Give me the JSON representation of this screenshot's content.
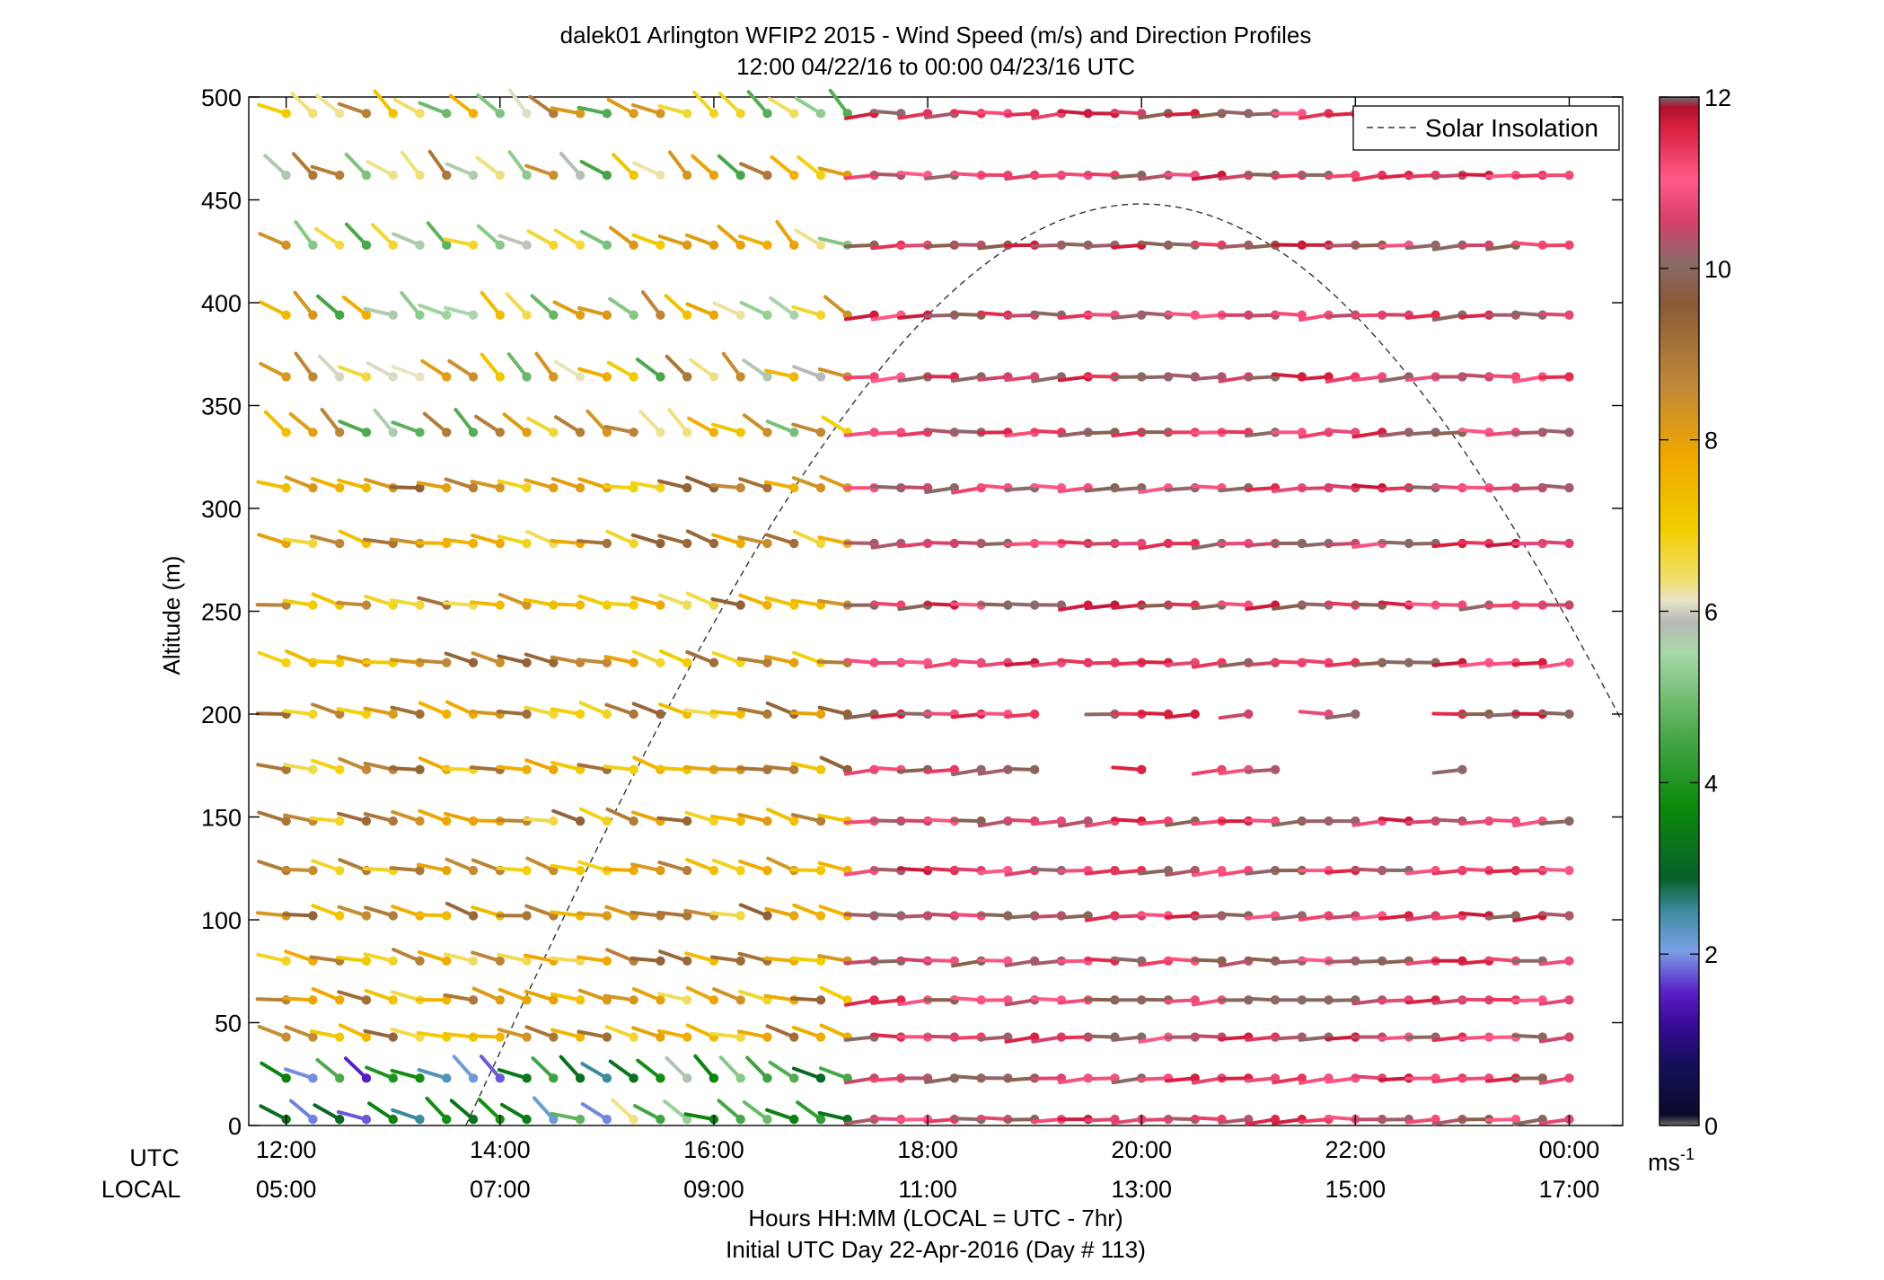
{
  "chart_data": {
    "type": "wind-barb-profile",
    "title": "dalek01 Arlington WFIP2 2015 - Wind Speed (m/s) and Direction Profiles",
    "subtitle": "12:00 04/22/16 to 00:00 04/23/16  UTC",
    "ylabel": "Altitude (m)",
    "xlabel_line1": "Hours HH:MM  (LOCAL = UTC - 7hr)",
    "xlabel_line2": "Initial UTC Day 22-Apr-2016 (Day # 113)",
    "xrow_utc_label": "UTC",
    "xrow_local_label": "LOCAL",
    "x_utc_ticks": [
      "12:00",
      "14:00",
      "16:00",
      "18:00",
      "20:00",
      "22:00",
      "00:00"
    ],
    "x_local_ticks": [
      "05:00",
      "07:00",
      "09:00",
      "11:00",
      "13:00",
      "15:00",
      "17:00"
    ],
    "y_ticks": [
      "0",
      "50",
      "100",
      "150",
      "200",
      "250",
      "300",
      "350",
      "400",
      "450",
      "500"
    ],
    "ylim": [
      0,
      500
    ],
    "xlim_hours_utc": [
      11.65,
      24.5
    ],
    "levels_m": [
      3,
      23,
      43,
      61,
      80,
      102,
      124,
      148,
      173,
      200,
      225,
      253,
      283,
      310,
      337,
      364,
      394,
      428,
      462,
      492
    ],
    "colorbar": {
      "ticks": [
        "0",
        "2",
        "4",
        "6",
        "8",
        "10",
        "12"
      ],
      "unit_label": "ms",
      "unit_exponent": "-1",
      "range": [
        0,
        12
      ]
    },
    "legend": {
      "entries": [
        "Solar Insolation"
      ],
      "placement": "top-right"
    },
    "solar_insolation": {
      "peak_hour_utc": 20.0,
      "peak_altitude_m": 448,
      "zero_crossing_hours_utc": [
        13.68,
        26.32
      ],
      "style": "dashed"
    },
    "time_step_hours": 0.25,
    "speed_regimes": [
      {
        "period_utc": "12:00-17:15",
        "heights": "0-30 m",
        "speed_ms": [
          1.5,
          5
        ],
        "direction_deg": [
          220,
          260
        ]
      },
      {
        "period_utc": "12:00-17:15",
        "heights": "40-320 m",
        "speed_ms": [
          6.5,
          9.5
        ],
        "direction_deg": [
          245,
          270
        ]
      },
      {
        "period_utc": "12:00-17:30",
        "heights": "320-500 m",
        "speed_ms": [
          4.5,
          9
        ],
        "direction_deg": [
          215,
          260
        ]
      },
      {
        "period_utc": "17:30-00:00",
        "heights": "0-500 m",
        "speed_ms": [
          9.5,
          12
        ],
        "direction_deg": [
          265,
          280
        ]
      }
    ],
    "gaps": [
      {
        "level_m": 173,
        "times_utc": [
          "19:15",
          "19:30",
          "19:45",
          "20:15",
          "20:30",
          "21:30",
          "21:45",
          "22:00",
          "22:15",
          "22:30",
          "22:45",
          "23:15",
          "23:30",
          "23:45",
          "24:00"
        ]
      },
      {
        "level_m": 200,
        "times_utc": [
          "19:15",
          "19:30",
          "20:45",
          "21:15",
          "21:30",
          "22:15",
          "22:30",
          "22:45"
        ]
      }
    ]
  }
}
